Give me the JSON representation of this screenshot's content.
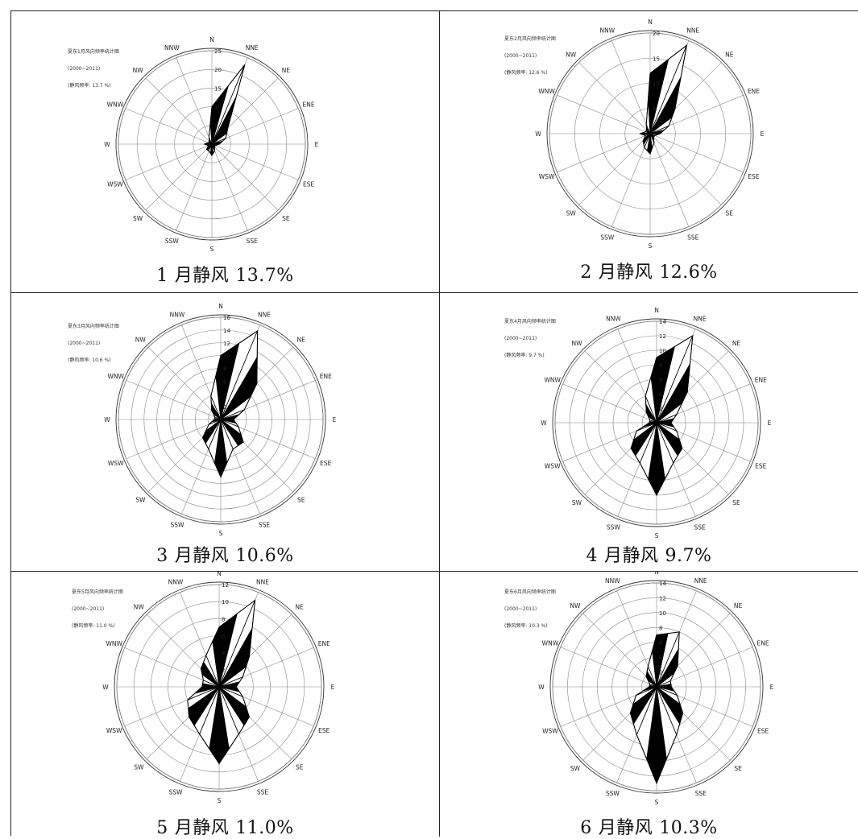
{
  "chart_data": [
    {
      "type": "radar",
      "meta": [
        "夏东1月风向频率统计图",
        "(2000~2011)",
        "(静风频率: 13.7 %)"
      ],
      "directions": [
        "N",
        "NNE",
        "NE",
        "ENE",
        "E",
        "ESE",
        "SE",
        "SSE",
        "S",
        "SSW",
        "SW",
        "WSW",
        "W",
        "WNW",
        "NW",
        "NNW"
      ],
      "rmax": 25,
      "tick_labels": [
        "25",
        "20",
        "15",
        "10",
        "5"
      ],
      "tick_values": [
        25,
        20,
        15,
        10,
        5
      ],
      "values": [
        10,
        23,
        6,
        4,
        2,
        1,
        1,
        2,
        3,
        2,
        2,
        1,
        2,
        1,
        1,
        2
      ],
      "caption": {
        "month": "1",
        "text": "月静风",
        "value": "13.7%"
      }
    },
    {
      "type": "radar",
      "meta": [
        "夏东2月风向频率统计图",
        "(2000~2011)",
        "(静风频率: 12.6 %)"
      ],
      "directions": [
        "N",
        "NNE",
        "NE",
        "ENE",
        "E",
        "ESE",
        "SE",
        "SSE",
        "S",
        "SSW",
        "SW",
        "WSW",
        "W",
        "WNW",
        "NW",
        "NNW"
      ],
      "rmax": 20,
      "tick_labels": [
        "20",
        "15",
        "10",
        "5"
      ],
      "tick_values": [
        20,
        15,
        10,
        5
      ],
      "values": [
        12,
        19,
        7,
        4,
        2,
        1,
        1,
        2,
        4,
        3,
        2,
        1,
        2,
        1,
        1,
        2
      ],
      "caption": {
        "month": "2",
        "text": "月静风",
        "value": "12.6%"
      }
    },
    {
      "type": "radar",
      "meta": [
        "夏东3月风向频率统计图",
        "(2000~2011)",
        "(静风频率: 10.6 %)"
      ],
      "directions": [
        "N",
        "NNE",
        "NE",
        "ENE",
        "E",
        "ESE",
        "SE",
        "SSE",
        "S",
        "SSW",
        "SW",
        "WSW",
        "W",
        "WNW",
        "NW",
        "NNW"
      ],
      "rmax": 16,
      "tick_labels": [
        "16",
        "14",
        "12",
        "10",
        "8",
        "6",
        "4",
        "2"
      ],
      "tick_values": [
        16,
        14,
        12,
        10,
        8,
        6,
        4,
        2
      ],
      "values": [
        10,
        15,
        8,
        4,
        2,
        3,
        5,
        5,
        9,
        5,
        4,
        2,
        1,
        1,
        2,
        4
      ],
      "caption": {
        "month": "3",
        "text": "月静风",
        "value": "10.6%"
      }
    },
    {
      "type": "radar",
      "meta": [
        "夏东4月风向频率统计图",
        "(2000~2011)",
        "(静风频率: 9.7 %)"
      ],
      "directions": [
        "N",
        "NNE",
        "NE",
        "ENE",
        "E",
        "ESE",
        "SE",
        "SSE",
        "S",
        "SSW",
        "SW",
        "WSW",
        "W",
        "WNW",
        "NW",
        "NNW"
      ],
      "rmax": 14,
      "tick_labels": [
        "14",
        "12",
        "10",
        "8",
        "6",
        "4",
        "2"
      ],
      "tick_values": [
        14,
        12,
        10,
        8,
        6,
        4,
        2
      ],
      "values": [
        9,
        13,
        6,
        3,
        2,
        3,
        5,
        6,
        10,
        6,
        5,
        3,
        1,
        1,
        2,
        4
      ],
      "caption": {
        "month": "4",
        "text": "月静风",
        "value": "9.7%"
      }
    },
    {
      "type": "radar",
      "meta": [
        "夏东5月风向频率统计图",
        "(2000~2011)",
        "(静风频率: 11.0 %)"
      ],
      "directions": [
        "N",
        "NNE",
        "NE",
        "ENE",
        "E",
        "ESE",
        "SE",
        "SSE",
        "S",
        "SSW",
        "SW",
        "WSW",
        "W",
        "WNW",
        "NW",
        "NNW"
      ],
      "rmax": 12,
      "tick_labels": [
        "12",
        "10",
        "8",
        "6",
        "4",
        "2"
      ],
      "tick_values": [
        12,
        10,
        8,
        6,
        4,
        2
      ],
      "values": [
        7,
        11,
        5,
        3,
        2,
        3,
        5,
        6,
        9,
        6,
        5,
        4,
        2,
        2,
        3,
        4
      ],
      "caption": {
        "month": "5",
        "text": "月静风",
        "value": "11.0%"
      }
    },
    {
      "type": "radar",
      "meta": [
        "夏东6月风向频率统计图",
        "(2000~2011)",
        "(静风频率: 10.3 %)"
      ],
      "directions": [
        "N",
        "NNE",
        "NE",
        "ENE",
        "E",
        "ESE",
        "SE",
        "SSE",
        "S",
        "SSW",
        "SW",
        "WSW",
        "W",
        "WNW",
        "NW",
        "NNW"
      ],
      "rmax": 14,
      "tick_labels": [
        "14",
        "12",
        "10",
        "8",
        "6",
        "4",
        "2"
      ],
      "tick_values": [
        14,
        12,
        10,
        8,
        6,
        4,
        2
      ],
      "values": [
        7,
        8,
        4,
        2,
        2,
        3,
        5,
        7,
        13,
        7,
        5,
        3,
        1,
        1,
        2,
        3
      ],
      "caption": {
        "month": "6",
        "text": "月静风",
        "value": "10.3%"
      }
    }
  ]
}
